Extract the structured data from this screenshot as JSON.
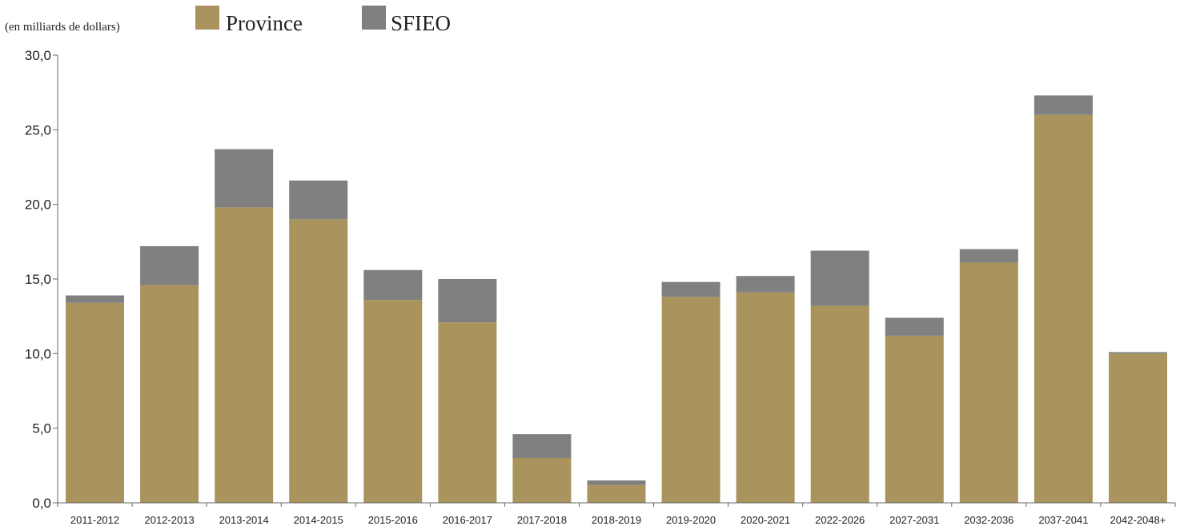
{
  "chart_data": {
    "type": "bar",
    "stacked": true,
    "unit_label": "(en milliards de dollars)",
    "categories": [
      "2011-2012",
      "2012-2013",
      "2013-2014",
      "2014-2015",
      "2015-2016",
      "2016-2017",
      "2017-2018",
      "2018-2019",
      "2019-2020",
      "2020-2021",
      "2022-2026",
      "2027-2031",
      "2032-2036",
      "2037-2041",
      "2042-2048+"
    ],
    "series": [
      {
        "name": "Province",
        "color": "#a9945e",
        "values": [
          13.4,
          14.6,
          19.8,
          19.0,
          13.6,
          12.1,
          3.0,
          1.2,
          13.8,
          14.1,
          13.2,
          11.2,
          16.1,
          26.0,
          10.0
        ]
      },
      {
        "name": "SFIEO",
        "color": "#808080",
        "values": [
          0.5,
          2.6,
          3.9,
          2.6,
          2.0,
          2.9,
          1.6,
          0.3,
          1.0,
          1.1,
          3.7,
          1.2,
          0.9,
          1.3,
          0.1
        ]
      }
    ],
    "ylim": [
      0,
      30
    ],
    "yticks": [
      "0,0",
      "5,0",
      "10,0",
      "15,0",
      "20,0",
      "25,0",
      "30,0"
    ],
    "ytick_values": [
      0,
      5,
      10,
      15,
      20,
      25,
      30
    ],
    "grid": false,
    "legend_position": "top"
  }
}
